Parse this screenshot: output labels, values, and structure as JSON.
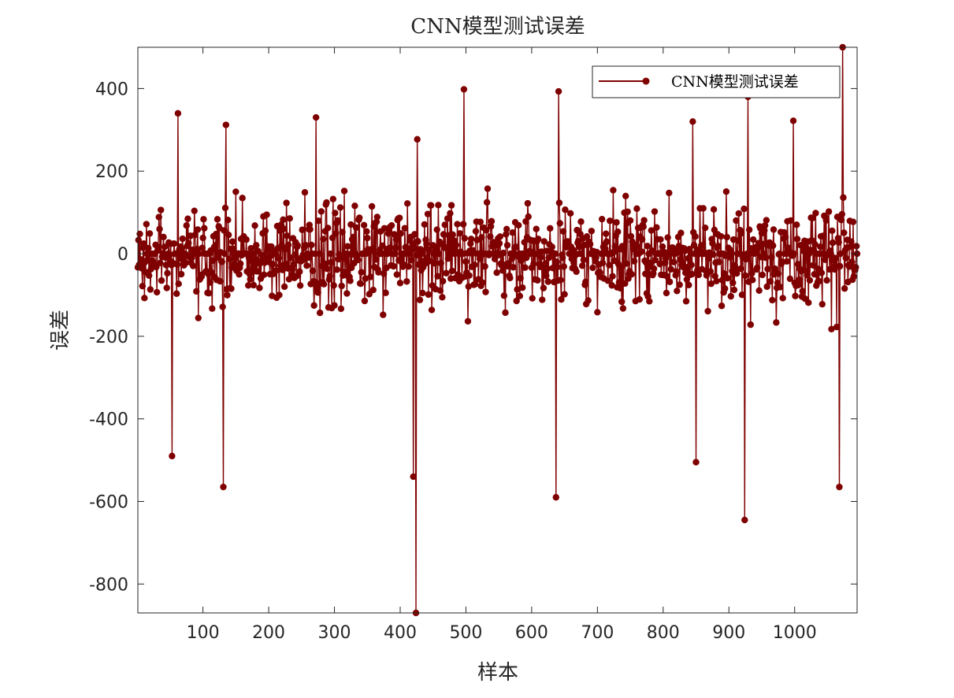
{
  "chart_data": {
    "type": "line",
    "title": "CNN模型测试误差",
    "xlabel": "样本",
    "ylabel": "误差",
    "xlim": [
      1,
      1095
    ],
    "ylim": [
      -870,
      500
    ],
    "xticks": [
      100,
      200,
      300,
      400,
      500,
      600,
      700,
      800,
      900,
      1000
    ],
    "xtick_labels": [
      "100",
      "200",
      "300",
      "400",
      "500",
      "600",
      "700",
      "800",
      "900",
      "1000"
    ],
    "yticks": [
      -800,
      -600,
      -400,
      -200,
      0,
      200,
      400
    ],
    "ytick_labels": [
      "-800",
      "-600",
      "-400",
      "-200",
      "0",
      "200",
      "400"
    ],
    "grid": false,
    "legend": "top-right",
    "series": [
      {
        "name": "CNN模型测试误差",
        "color": "#7f0000",
        "marker": "filled-circle",
        "n_points": 1095,
        "notable_points": [
          {
            "x": 53,
            "y": -490
          },
          {
            "x": 62,
            "y": 340
          },
          {
            "x": 131,
            "y": -565
          },
          {
            "x": 135,
            "y": 312
          },
          {
            "x": 272,
            "y": 330
          },
          {
            "x": 420,
            "y": -540
          },
          {
            "x": 424,
            "y": -870
          },
          {
            "x": 426,
            "y": 277
          },
          {
            "x": 497,
            "y": 398
          },
          {
            "x": 637,
            "y": -590
          },
          {
            "x": 641,
            "y": 393
          },
          {
            "x": 845,
            "y": 320
          },
          {
            "x": 850,
            "y": -505
          },
          {
            "x": 924,
            "y": -645
          },
          {
            "x": 929,
            "y": 380
          },
          {
            "x": 998,
            "y": 322
          },
          {
            "x": 1068,
            "y": -565
          },
          {
            "x": 1073,
            "y": 500
          }
        ]
      }
    ]
  }
}
